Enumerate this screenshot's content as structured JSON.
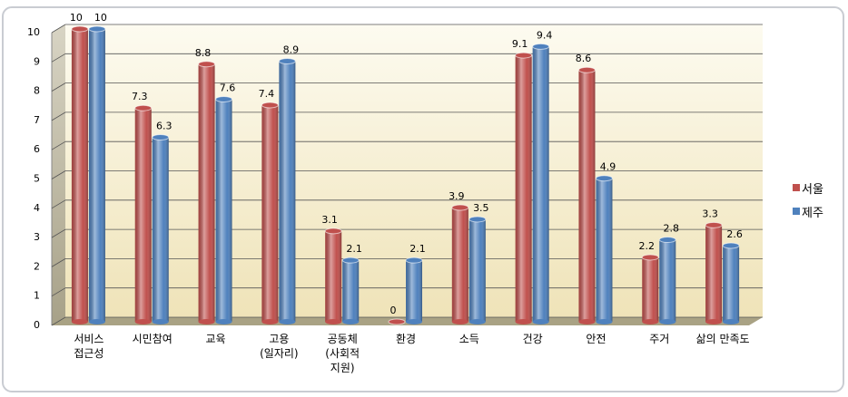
{
  "chart_data": {
    "type": "bar",
    "categories": [
      "서비스\n접근성",
      "시민참여",
      "교육",
      "고용\n(일자리)",
      "공동체\n(사회적\n지원)",
      "환경",
      "소득",
      "건강",
      "안전",
      "주거",
      "삶의 만족도"
    ],
    "series": [
      {
        "name": "서울",
        "color": "#c0504d",
        "values": [
          10,
          7.3,
          8.8,
          7.4,
          3.1,
          0,
          3.9,
          9.1,
          8.6,
          2.2,
          3.3
        ]
      },
      {
        "name": "제주",
        "color": "#4f81bd",
        "values": [
          10,
          6.3,
          7.6,
          8.9,
          2.1,
          2.1,
          3.5,
          9.4,
          4.9,
          2.8,
          2.6
        ]
      }
    ],
    "ylim": [
      0,
      10
    ],
    "yticks": [
      0,
      1,
      2,
      3,
      4,
      5,
      6,
      7,
      8,
      9,
      10
    ],
    "grid": true,
    "legend": "right"
  }
}
